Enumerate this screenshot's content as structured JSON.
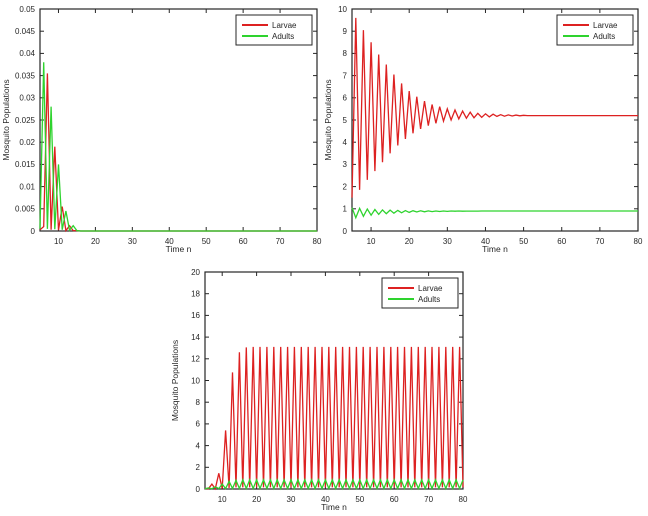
{
  "figure": {
    "background": "#ffffff",
    "axis_color": "#262626",
    "text_color": "#262626"
  },
  "colors": {
    "larvae": "#dd2121",
    "adults": "#2ed32e"
  },
  "legend": {
    "larvae_label": "Larvae",
    "adults_label": "Adults"
  },
  "chart_data": [
    {
      "type": "line",
      "title": "",
      "xlabel": "Time n",
      "ylabel": "Mosquito Populations",
      "xlim": [
        5,
        80
      ],
      "ylim": [
        0,
        0.05
      ],
      "x0": 5,
      "dx": 1,
      "xtick_labels": [
        "10",
        "20",
        "30",
        "40",
        "50",
        "60",
        "70",
        "80"
      ],
      "xtick_values": [
        10,
        20,
        30,
        40,
        50,
        60,
        70,
        80
      ],
      "ytick_labels": [
        "0",
        "0.005",
        "0.01",
        "0.015",
        "0.02",
        "0.025",
        "0.03",
        "0.035",
        "0.04",
        "0.045",
        "0.05"
      ],
      "ytick_values": [
        0,
        0.005,
        0.01,
        0.015,
        0.02,
        0.025,
        0.03,
        0.035,
        0.04,
        0.045,
        0.05
      ],
      "grid": false,
      "legend_position": "top-right",
      "series": [
        {
          "name": "Larvae",
          "color_key": "larvae",
          "values": [
            0.0003,
            0.001,
            0.0355,
            0.0003,
            0.019,
            0.0002,
            0.0055,
            0.0001,
            0.0012,
            0.0001,
            0.0001,
            0
          ]
        },
        {
          "name": "Adults",
          "color_key": "adults",
          "values": [
            0.0005,
            0.038,
            0.0005,
            0.028,
            0.0004,
            0.015,
            0.0003,
            0.0045,
            0.0002,
            0.0012,
            0.0001,
            0
          ]
        }
      ]
    },
    {
      "type": "line",
      "title": "",
      "xlabel": "Time n",
      "ylabel": "Mosquito Populations",
      "xlim": [
        5,
        80
      ],
      "ylim": [
        0,
        10
      ],
      "x0": 5,
      "dx": 1,
      "xtick_labels": [
        "10",
        "20",
        "30",
        "40",
        "50",
        "60",
        "70",
        "80"
      ],
      "xtick_values": [
        10,
        20,
        30,
        40,
        50,
        60,
        70,
        80
      ],
      "ytick_labels": [
        "0",
        "1",
        "2",
        "3",
        "4",
        "5",
        "6",
        "7",
        "8",
        "9",
        "10"
      ],
      "ytick_values": [
        0,
        1,
        2,
        3,
        4,
        5,
        6,
        7,
        8,
        9,
        10
      ],
      "grid": false,
      "legend_position": "top-right",
      "series": [
        {
          "name": "Larvae",
          "color_key": "larvae",
          "values": [
            1.5,
            9.6,
            1.85,
            9.05,
            2.3,
            8.5,
            2.7,
            7.95,
            3.1,
            7.5,
            3.5,
            7.05,
            3.85,
            6.65,
            4.15,
            6.3,
            4.4,
            6.05,
            4.6,
            5.85,
            4.75,
            5.7,
            4.85,
            5.6,
            4.95,
            5.5,
            5.0,
            5.45,
            5.05,
            5.4,
            5.08,
            5.35,
            5.1,
            5.3,
            5.12,
            5.28,
            5.14,
            5.26,
            5.16,
            5.24,
            5.17,
            5.23,
            5.18,
            5.22,
            5.19,
            5.21,
            5.2
          ]
        },
        {
          "name": "Adults",
          "color_key": "adults",
          "values": [
            1.05,
            0.6,
            1.02,
            0.66,
            0.99,
            0.71,
            0.97,
            0.75,
            0.95,
            0.78,
            0.94,
            0.8,
            0.93,
            0.82,
            0.92,
            0.84,
            0.915,
            0.855,
            0.91,
            0.865,
            0.905,
            0.875,
            0.9,
            0.88,
            0.9,
            0.885,
            0.9,
            0.89,
            0.9,
            0.893,
            0.898,
            0.895,
            0.898,
            0.897,
            0.9
          ]
        }
      ]
    },
    {
      "type": "line",
      "title": "",
      "xlabel": "Time n",
      "ylabel": "Mosquito Populations",
      "xlim": [
        5,
        80
      ],
      "ylim": [
        0,
        20
      ],
      "x0": 5,
      "dx": 1,
      "xtick_labels": [
        "10",
        "20",
        "30",
        "40",
        "50",
        "60",
        "70",
        "80"
      ],
      "xtick_values": [
        10,
        20,
        30,
        40,
        50,
        60,
        70,
        80
      ],
      "ytick_labels": [
        "0",
        "2",
        "4",
        "6",
        "8",
        "10",
        "12",
        "14",
        "16",
        "18",
        "20"
      ],
      "ytick_values": [
        0,
        2,
        4,
        6,
        8,
        10,
        12,
        14,
        16,
        18,
        20
      ],
      "grid": false,
      "legend_position": "top-right",
      "series": [
        {
          "name": "Larvae",
          "color_key": "larvae",
          "values": [
            0.05,
            0.02,
            0.45,
            0.03,
            1.45,
            0.05,
            5.4,
            0.1,
            10.75,
            0.15,
            12.6,
            0.15,
            13.05,
            0.15,
            13.1,
            0.15,
            13.1,
            0.15,
            13.1,
            0.15,
            13.1,
            0.15,
            13.1,
            0.15,
            13.1,
            0.15,
            13.1,
            0.15,
            13.1,
            0.15,
            13.1,
            0.15,
            13.1,
            0.15,
            13.1,
            0.15,
            13.1,
            0.15,
            13.1,
            0.15,
            13.1,
            0.15,
            13.1,
            0.15,
            13.1,
            0.15,
            13.1,
            0.15,
            13.1,
            0.15,
            13.1,
            0.15,
            13.1,
            0.15,
            13.1,
            0.15,
            13.1,
            0.15,
            13.1,
            0.15,
            13.1,
            0.15,
            13.1,
            0.15,
            13.1,
            0.15,
            13.1,
            0.15,
            13.1,
            0.15,
            13.1,
            0.15,
            13.1,
            0.15,
            13.1,
            0.15
          ]
        },
        {
          "name": "Adults",
          "color_key": "adults",
          "values": [
            0.02,
            0.1,
            0.03,
            0.2,
            0.04,
            0.45,
            0.05,
            0.7,
            0.05,
            0.8,
            0.05,
            0.85,
            0.05,
            0.85,
            0.05,
            0.85,
            0.05,
            0.85,
            0.05,
            0.85,
            0.05,
            0.85,
            0.05,
            0.85,
            0.05,
            0.85,
            0.05,
            0.85,
            0.05,
            0.85,
            0.05,
            0.85,
            0.05,
            0.85,
            0.05,
            0.85,
            0.05,
            0.85,
            0.05,
            0.85,
            0.05,
            0.85,
            0.05,
            0.85,
            0.05,
            0.85,
            0.05,
            0.85,
            0.05,
            0.85,
            0.05,
            0.85,
            0.05,
            0.85,
            0.05,
            0.85,
            0.05,
            0.85,
            0.05,
            0.85,
            0.05,
            0.85,
            0.05,
            0.85,
            0.05,
            0.85,
            0.05,
            0.85,
            0.05,
            0.85,
            0.05,
            0.85,
            0.05,
            0.85,
            0.05,
            0.85
          ]
        }
      ]
    }
  ]
}
